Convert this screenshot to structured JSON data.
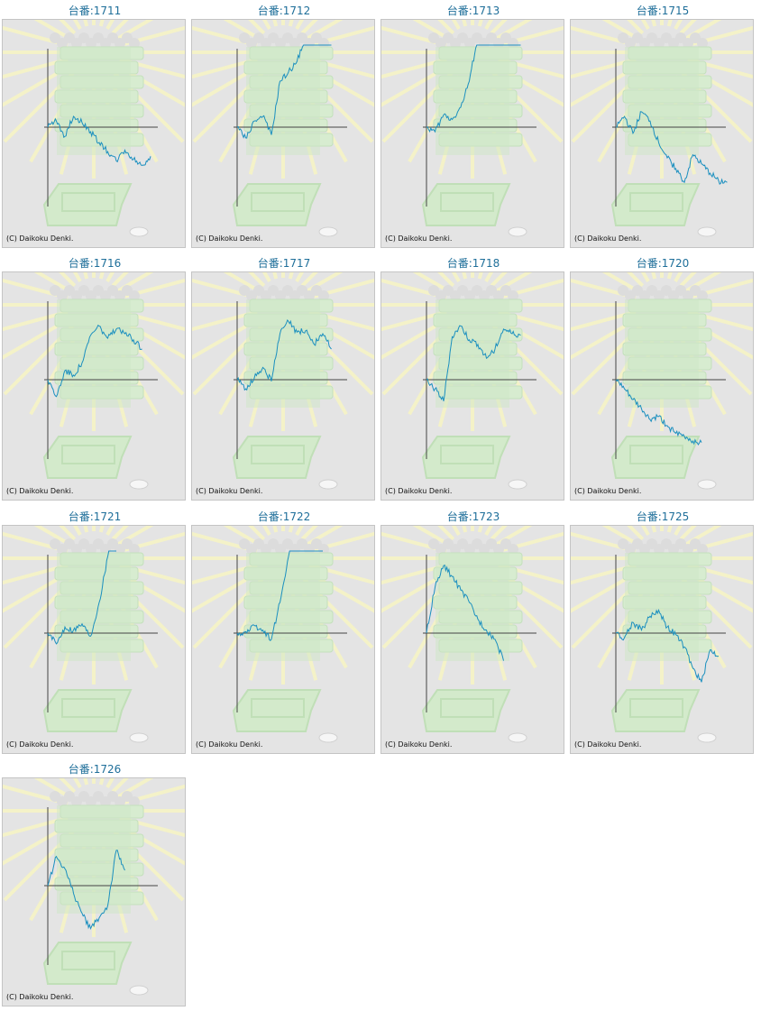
{
  "title_prefix": "台番:",
  "copyright": "(C) Daikoku Denki.",
  "colors": {
    "title": "#1f6f9a",
    "line": "#1a8fbf",
    "axis": "#444444",
    "panel": "#e4e4e4"
  },
  "chart_data": [
    {
      "type": "line",
      "machine": "1711",
      "values": [
        0,
        8,
        -12,
        14,
        6,
        -6,
        -20,
        -32,
        -44,
        -30,
        -42,
        -50,
        -38
      ]
    },
    {
      "type": "line",
      "machine": "1712",
      "values": [
        0,
        -14,
        8,
        14,
        -10,
        60,
        72,
        86,
        120,
        116,
        124,
        116
      ]
    },
    {
      "type": "line",
      "machine": "1713",
      "values": [
        0,
        -6,
        16,
        10,
        26,
        60,
        120,
        150,
        170,
        110,
        120,
        140
      ]
    },
    {
      "type": "line",
      "machine": "1715",
      "values": [
        0,
        14,
        -8,
        20,
        8,
        -20,
        -40,
        -54,
        -72,
        -36,
        -48,
        -60,
        -70,
        -72
      ]
    },
    {
      "type": "line",
      "machine": "1716",
      "values": [
        0,
        -22,
        12,
        6,
        22,
        58,
        70,
        54,
        66,
        60,
        52,
        40
      ]
    },
    {
      "type": "line",
      "machine": "1717",
      "values": [
        0,
        -12,
        2,
        16,
        -2,
        60,
        76,
        62,
        64,
        46,
        60,
        40
      ]
    },
    {
      "type": "line",
      "machine": "1718",
      "values": [
        0,
        -12,
        -28,
        56,
        70,
        52,
        46,
        28,
        40,
        66,
        60,
        58
      ]
    },
    {
      "type": "line",
      "machine": "1720",
      "values": [
        0,
        -12,
        -26,
        -38,
        -52,
        -48,
        -60,
        -70,
        -74,
        -80,
        -82
      ]
    },
    {
      "type": "line",
      "machine": "1721",
      "values": [
        0,
        -14,
        8,
        4,
        12,
        -4,
        40,
        100,
        150
      ]
    },
    {
      "type": "line",
      "machine": "1722",
      "values": [
        0,
        2,
        10,
        4,
        -8,
        40,
        100,
        150,
        170,
        180,
        170
      ]
    },
    {
      "type": "line",
      "machine": "1723",
      "values": [
        0,
        60,
        88,
        74,
        56,
        40,
        18,
        4,
        -8,
        -36
      ]
    },
    {
      "type": "line",
      "machine": "1725",
      "values": [
        0,
        -6,
        14,
        4,
        22,
        30,
        8,
        -2,
        -18,
        -46,
        -64,
        -22,
        -30
      ]
    },
    {
      "type": "line",
      "machine": "1726",
      "values": [
        0,
        38,
        22,
        -10,
        -36,
        -56,
        -42,
        -26,
        46,
        20
      ]
    }
  ]
}
